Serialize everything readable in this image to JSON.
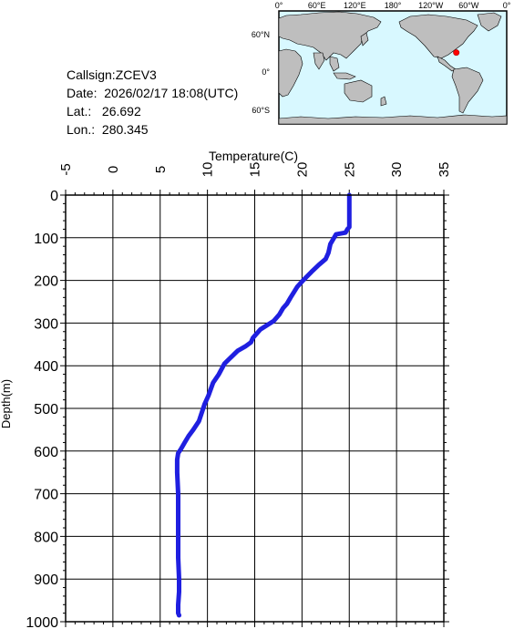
{
  "info": {
    "callsign": "Callsign:ZCEV3",
    "date": "Date:  2026/02/17 18:08(UTC)",
    "lat": "Lat.:   26.692",
    "lon": "Lon.:  280.345"
  },
  "map": {
    "top_labels": [
      "0°",
      "60°E",
      "120°E",
      "180°",
      "120°W",
      "60°W",
      "0°"
    ],
    "left_labels": [
      "60°N",
      "0°",
      "60°S"
    ],
    "ocean_color": "#d8f8ff",
    "land_color": "#bebebe",
    "marker_color": "#ff0000",
    "marker_lon": 280.345,
    "marker_lat": 26.692
  },
  "chart_data": {
    "type": "line",
    "title": "",
    "xlabel": "Temperature(C)",
    "ylabel": "Depth(m)",
    "xlim": [
      -5,
      35
    ],
    "ylim": [
      1000,
      0
    ],
    "x_ticks": [
      "-5",
      "0",
      "5",
      "10",
      "15",
      "20",
      "25",
      "30",
      "35"
    ],
    "y_ticks": [
      "0",
      "100",
      "200",
      "300",
      "400",
      "500",
      "600",
      "700",
      "800",
      "900",
      "1000"
    ],
    "grid": true,
    "line_color": "#1f1fe0",
    "series": [
      {
        "x": [
          25.0,
          25.0,
          25.0,
          24.8,
          24.6,
          23.6,
          23.0,
          22.8,
          22.5,
          21.8,
          21.0,
          20.2,
          19.5,
          18.8,
          18.4,
          18.0,
          17.6,
          17.0,
          16.3,
          15.6,
          14.8,
          14.6,
          14.0,
          13.2,
          12.5,
          11.8,
          11.2,
          10.6,
          10.1,
          9.7,
          9.4,
          9.1,
          8.5,
          8.0,
          7.6,
          7.2,
          6.9,
          6.8,
          6.8,
          6.9,
          6.9,
          6.9,
          6.9,
          7.0,
          7.0,
          6.9,
          6.9,
          7.0
        ],
        "y": [
          0,
          50,
          75,
          80,
          88,
          92,
          115,
          135,
          150,
          163,
          180,
          198,
          215,
          240,
          255,
          265,
          280,
          295,
          305,
          315,
          335,
          345,
          355,
          365,
          380,
          395,
          420,
          440,
          470,
          490,
          510,
          530,
          550,
          565,
          580,
          595,
          605,
          620,
          650,
          700,
          750,
          800,
          850,
          900,
          930,
          960,
          980,
          985
        ]
      }
    ]
  }
}
